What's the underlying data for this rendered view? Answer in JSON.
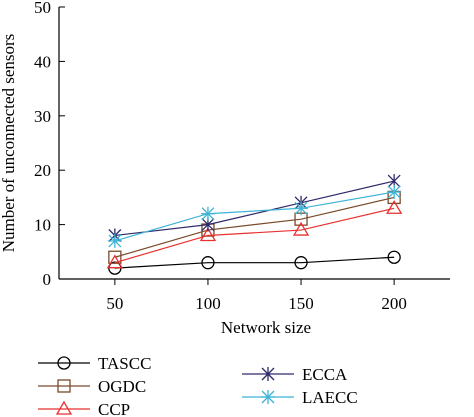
{
  "chart_data": {
    "type": "line",
    "title": "",
    "xlabel": "Network size",
    "ylabel": "Number of unconnected sensors",
    "categories": [
      "50",
      "100",
      "150",
      "200"
    ],
    "x": [
      50,
      100,
      150,
      200
    ],
    "xlim": [
      20,
      230
    ],
    "ylim": [
      0,
      50
    ],
    "yticks": [
      0,
      10,
      20,
      30,
      40,
      50
    ],
    "grid": false,
    "legend_position": "bottom",
    "series": [
      {
        "name": "TASCC",
        "values": [
          2,
          3,
          3,
          4
        ],
        "color": "#000000",
        "marker": "circle"
      },
      {
        "name": "OGDC",
        "values": [
          4,
          9,
          11,
          15
        ],
        "color": "#7a4a2a",
        "marker": "square"
      },
      {
        "name": "CCP",
        "values": [
          3,
          8,
          9,
          13
        ],
        "color": "#e8312f",
        "marker": "triangle"
      },
      {
        "name": "ECCA",
        "values": [
          8,
          10,
          14,
          18
        ],
        "color": "#2d2a6b",
        "marker": "star"
      },
      {
        "name": "LAECC",
        "values": [
          7,
          12,
          13,
          16
        ],
        "color": "#3fb4d6",
        "marker": "asterisk"
      }
    ]
  }
}
